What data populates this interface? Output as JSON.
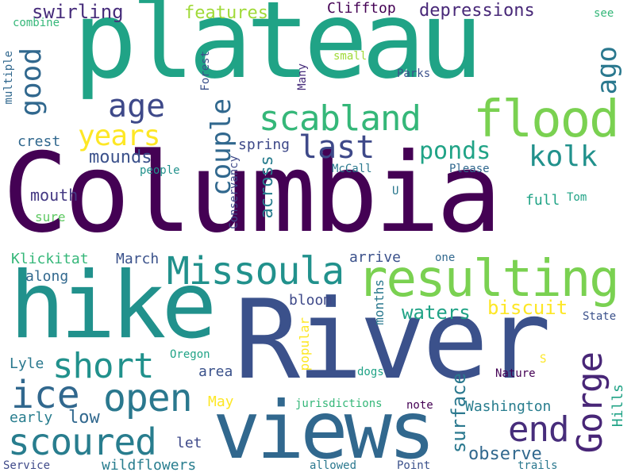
{
  "words": [
    {
      "text": "Columbia",
      "color": "#440154"
    },
    {
      "text": "River",
      "color": "#3b518b"
    },
    {
      "text": "plateau",
      "color": "#20a386"
    },
    {
      "text": "hike",
      "color": "#21918c"
    },
    {
      "text": "views",
      "color": "#31688e"
    },
    {
      "text": "resulting",
      "color": "#7ad151"
    },
    {
      "text": "flood",
      "color": "#7ad151"
    },
    {
      "text": "Missoula",
      "color": "#21918c"
    },
    {
      "text": "scabland",
      "color": "#35b779"
    },
    {
      "text": "open",
      "color": "#2a788e"
    },
    {
      "text": "scoured",
      "color": "#287d8e"
    },
    {
      "text": "ice",
      "color": "#31688e"
    },
    {
      "text": "short",
      "color": "#21918c"
    },
    {
      "text": "Gorge",
      "color": "#482677"
    },
    {
      "text": "end",
      "color": "#472d7b"
    },
    {
      "text": "age",
      "color": "#3e4989"
    },
    {
      "text": "years",
      "color": "#fde725"
    },
    {
      "text": "last",
      "color": "#3e4989"
    },
    {
      "text": "kolk",
      "color": "#21918c"
    },
    {
      "text": "ponds",
      "color": "#20a386"
    },
    {
      "text": "couple",
      "color": "#31688e"
    },
    {
      "text": "good",
      "color": "#31688e"
    },
    {
      "text": "ago",
      "color": "#2a788e"
    },
    {
      "text": "swirling",
      "color": "#472d7b"
    },
    {
      "text": "features",
      "color": "#a0da39"
    },
    {
      "text": "depressions",
      "color": "#482878"
    },
    {
      "text": "Clifftop",
      "color": "#440154"
    },
    {
      "text": "mounds",
      "color": "#3b518b"
    },
    {
      "text": "spring",
      "color": "#3e4989"
    },
    {
      "text": "crest",
      "color": "#31688e"
    },
    {
      "text": "across",
      "color": "#287d8e"
    },
    {
      "text": "Conservancy",
      "color": "#3e4989"
    },
    {
      "text": "waters",
      "color": "#20a386"
    },
    {
      "text": "biscuit",
      "color": "#fde725"
    },
    {
      "text": "surface",
      "color": "#2a788e"
    },
    {
      "text": "observe",
      "color": "#31688e"
    },
    {
      "text": "mouth",
      "color": "#443983"
    },
    {
      "text": "Klickitat",
      "color": "#35b779"
    },
    {
      "text": "March",
      "color": "#3b528b"
    },
    {
      "text": "along",
      "color": "#31688e"
    },
    {
      "text": "bloom",
      "color": "#3e4989"
    },
    {
      "text": "arrive",
      "color": "#3b518b"
    },
    {
      "text": "Lyle",
      "color": "#2a788e"
    },
    {
      "text": "area",
      "color": "#3b528b"
    },
    {
      "text": "low",
      "color": "#31688e"
    },
    {
      "text": "early",
      "color": "#287d8e"
    },
    {
      "text": "let",
      "color": "#3e4989"
    },
    {
      "text": "wildflowers",
      "color": "#287d8e"
    },
    {
      "text": "Washington",
      "color": "#287d8e"
    },
    {
      "text": "Hills",
      "color": "#20a386"
    },
    {
      "text": "months",
      "color": "#2a788e"
    },
    {
      "text": "popular",
      "color": "#fde725"
    },
    {
      "text": "May",
      "color": "#fde725"
    },
    {
      "text": "full",
      "color": "#20a386"
    },
    {
      "text": "Tom",
      "color": "#20a386"
    },
    {
      "text": "people",
      "color": "#21918c"
    },
    {
      "text": "McCall",
      "color": "#2a788e"
    },
    {
      "text": "Please",
      "color": "#31688e"
    },
    {
      "text": "U",
      "color": "#2a788e"
    },
    {
      "text": "S",
      "color": "#fde725"
    },
    {
      "text": "sure",
      "color": "#5ec962"
    },
    {
      "text": "one",
      "color": "#31688e"
    },
    {
      "text": "State",
      "color": "#3b518b"
    },
    {
      "text": "Oregon",
      "color": "#20a386"
    },
    {
      "text": "dogs",
      "color": "#20a386"
    },
    {
      "text": "Nature",
      "color": "#440154"
    },
    {
      "text": "note",
      "color": "#440154"
    },
    {
      "text": "jurisdictions",
      "color": "#35b779"
    },
    {
      "text": "Service",
      "color": "#3e4989"
    },
    {
      "text": "allowed",
      "color": "#2a788e"
    },
    {
      "text": "Point",
      "color": "#3b518b"
    },
    {
      "text": "trails",
      "color": "#2a788e"
    },
    {
      "text": "see",
      "color": "#35b779"
    },
    {
      "text": "combine",
      "color": "#35b779"
    },
    {
      "text": "multiple",
      "color": "#31688e"
    },
    {
      "text": "Forest",
      "color": "#3b518b"
    },
    {
      "text": "small",
      "color": "#a0da39"
    },
    {
      "text": "Many",
      "color": "#472d7b"
    },
    {
      "text": "Parks",
      "color": "#3b518b"
    }
  ]
}
